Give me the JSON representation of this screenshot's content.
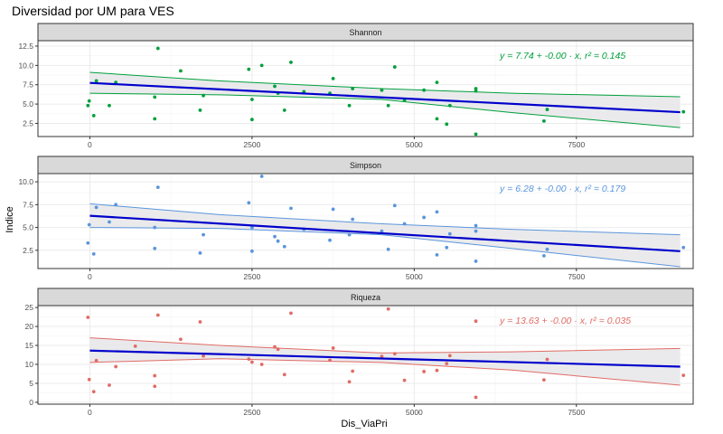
{
  "title": "Diversidad por UM para VES",
  "xlabel": "Dis_ViaPri",
  "ylabel": "Indice",
  "colors": {
    "strip_bg": "#d9d9d9",
    "panel_border": "#333333",
    "grid": "#ebebeb",
    "fit_line": "#0000cc",
    "ribbon": "#e8e8ea"
  },
  "chart_data": [
    {
      "type": "scatter",
      "facet": "Shannon",
      "color": "#00a03c",
      "equation": "y = 7.74 + -0.00 · x,  r² = 0.145",
      "xlim": [
        -800,
        9300
      ],
      "ylim": [
        0.8,
        13.2
      ],
      "xticks": [
        0,
        2500,
        5000,
        7500
      ],
      "xtick_labels": [
        "0",
        "2500",
        "5000",
        "7500"
      ],
      "yticks": [
        2.5,
        5.0,
        7.5,
        10.0,
        12.5
      ],
      "ytick_labels": [
        "2.5",
        "5.0",
        "7.5",
        "10.0",
        "12.5"
      ],
      "fit": {
        "x": [
          0,
          9100
        ],
        "y": [
          7.74,
          3.95
        ]
      },
      "band_upper": {
        "x": [
          0,
          2000,
          4500,
          6500,
          9100
        ],
        "y": [
          9.1,
          8.0,
          7.0,
          6.4,
          5.95
        ]
      },
      "band_lower": {
        "x": [
          0,
          2000,
          4500,
          6500,
          9100
        ],
        "y": [
          6.4,
          6.2,
          5.6,
          3.9,
          1.95
        ]
      },
      "points": [
        [
          -30,
          4.8
        ],
        [
          -10,
          5.4
        ],
        [
          60,
          3.5
        ],
        [
          100,
          8.0
        ],
        [
          300,
          4.8
        ],
        [
          400,
          7.8
        ],
        [
          1000,
          3.1
        ],
        [
          1000,
          5.9
        ],
        [
          1050,
          12.2
        ],
        [
          1400,
          9.3
        ],
        [
          1700,
          4.2
        ],
        [
          1750,
          6.1
        ],
        [
          2450,
          9.5
        ],
        [
          2500,
          3.0
        ],
        [
          2500,
          5.6
        ],
        [
          2650,
          10.0
        ],
        [
          2850,
          7.3
        ],
        [
          2900,
          6.4
        ],
        [
          3000,
          4.2
        ],
        [
          3100,
          10.4
        ],
        [
          3300,
          6.6
        ],
        [
          3700,
          6.4
        ],
        [
          3750,
          8.3
        ],
        [
          4000,
          4.8
        ],
        [
          4050,
          7.0
        ],
        [
          4500,
          6.8
        ],
        [
          4600,
          4.8
        ],
        [
          4700,
          9.8
        ],
        [
          4850,
          5.5
        ],
        [
          5150,
          6.8
        ],
        [
          5350,
          3.1
        ],
        [
          5350,
          7.8
        ],
        [
          5500,
          2.4
        ],
        [
          5550,
          4.8
        ],
        [
          5950,
          6.7
        ],
        [
          5950,
          7.0
        ],
        [
          5950,
          1.1
        ],
        [
          7000,
          2.8
        ],
        [
          7050,
          4.3
        ],
        [
          9150,
          4.0
        ]
      ]
    },
    {
      "type": "scatter",
      "facet": "Simpson",
      "color": "#5b95dc",
      "equation": "y = 6.28 + -0.00 · x,  r² = 0.179",
      "xlim": [
        -800,
        9300
      ],
      "ylim": [
        0.5,
        10.9
      ],
      "xticks": [
        0,
        2500,
        5000,
        7500
      ],
      "xtick_labels": [
        "0",
        "2500",
        "5000",
        "7500"
      ],
      "yticks": [
        2.5,
        5.0,
        7.5,
        10.0
      ],
      "ytick_labels": [
        "2.5",
        "5.0",
        "7.5",
        "10.0"
      ],
      "fit": {
        "x": [
          0,
          9100
        ],
        "y": [
          6.28,
          2.4
        ]
      },
      "band_upper": {
        "x": [
          0,
          2000,
          4500,
          6500,
          9100
        ],
        "y": [
          7.6,
          6.4,
          5.4,
          4.8,
          4.2
        ]
      },
      "band_lower": {
        "x": [
          0,
          2000,
          4500,
          6500,
          9100
        ],
        "y": [
          5.0,
          4.9,
          4.2,
          2.7,
          0.7
        ]
      },
      "points": [
        [
          -30,
          3.3
        ],
        [
          -10,
          5.3
        ],
        [
          60,
          2.1
        ],
        [
          100,
          7.2
        ],
        [
          300,
          5.6
        ],
        [
          400,
          7.5
        ],
        [
          1000,
          2.7
        ],
        [
          1000,
          5.0
        ],
        [
          1050,
          9.4
        ],
        [
          1700,
          2.2
        ],
        [
          1750,
          4.2
        ],
        [
          2450,
          7.7
        ],
        [
          2500,
          2.4
        ],
        [
          2500,
          5.0
        ],
        [
          2650,
          10.6
        ],
        [
          2850,
          4.0
        ],
        [
          2900,
          3.5
        ],
        [
          3000,
          2.9
        ],
        [
          3100,
          7.1
        ],
        [
          3300,
          4.8
        ],
        [
          3700,
          3.6
        ],
        [
          3750,
          7.0
        ],
        [
          4000,
          4.2
        ],
        [
          4050,
          5.9
        ],
        [
          4500,
          4.6
        ],
        [
          4600,
          2.6
        ],
        [
          4700,
          7.4
        ],
        [
          4850,
          5.4
        ],
        [
          5150,
          6.1
        ],
        [
          5350,
          2.0
        ],
        [
          5350,
          6.7
        ],
        [
          5500,
          2.8
        ],
        [
          5550,
          4.3
        ],
        [
          5950,
          4.6
        ],
        [
          5950,
          5.2
        ],
        [
          5950,
          1.3
        ],
        [
          7000,
          1.9
        ],
        [
          7050,
          2.6
        ],
        [
          9150,
          2.8
        ]
      ]
    },
    {
      "type": "scatter",
      "facet": "Riqueza",
      "color": "#e06c66",
      "equation": "y = 13.63 + -0.00 · x,  r² = 0.035",
      "xlim": [
        -800,
        9300
      ],
      "ylim": [
        -0.5,
        25.5
      ],
      "xticks": [
        0,
        2500,
        5000,
        7500
      ],
      "xtick_labels": [
        "0",
        "2500",
        "5000",
        "7500"
      ],
      "yticks": [
        0,
        5,
        10,
        15,
        20,
        25
      ],
      "ytick_labels": [
        "0",
        "5",
        "10",
        "15",
        "20",
        "25"
      ],
      "fit": {
        "x": [
          0,
          9100
        ],
        "y": [
          13.63,
          9.4
        ]
      },
      "band_upper": {
        "x": [
          0,
          2000,
          4500,
          6500,
          9100
        ],
        "y": [
          17.0,
          15.0,
          13.0,
          13.3,
          14.2
        ]
      },
      "band_lower": {
        "x": [
          0,
          2000,
          4500,
          6500,
          9100
        ],
        "y": [
          10.5,
          11.5,
          10.5,
          8.5,
          4.5
        ]
      },
      "points": [
        [
          -30,
          22.4
        ],
        [
          -10,
          6.0
        ],
        [
          60,
          2.8
        ],
        [
          100,
          11.0
        ],
        [
          300,
          4.5
        ],
        [
          400,
          9.4
        ],
        [
          700,
          14.8
        ],
        [
          1000,
          4.2
        ],
        [
          1000,
          7.0
        ],
        [
          1050,
          23.0
        ],
        [
          1400,
          16.6
        ],
        [
          1700,
          21.2
        ],
        [
          1750,
          12.2
        ],
        [
          2450,
          11.4
        ],
        [
          2500,
          10.6
        ],
        [
          2650,
          10.0
        ],
        [
          2850,
          14.6
        ],
        [
          2900,
          14.0
        ],
        [
          3000,
          7.3
        ],
        [
          3100,
          23.5
        ],
        [
          3700,
          11.1
        ],
        [
          3750,
          14.3
        ],
        [
          4000,
          5.4
        ],
        [
          4050,
          8.2
        ],
        [
          4500,
          12.1
        ],
        [
          4600,
          24.6
        ],
        [
          4700,
          12.8
        ],
        [
          4850,
          5.8
        ],
        [
          5150,
          8.1
        ],
        [
          5350,
          8.4
        ],
        [
          5500,
          10.2
        ],
        [
          5550,
          12.3
        ],
        [
          5950,
          21.4
        ],
        [
          5950,
          1.3
        ],
        [
          7000,
          5.9
        ],
        [
          7050,
          11.3
        ],
        [
          9150,
          7.1
        ]
      ]
    }
  ]
}
